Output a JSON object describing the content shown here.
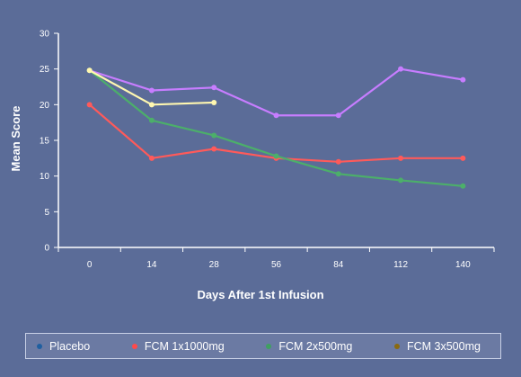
{
  "chart_data": {
    "type": "line",
    "xlabel": "Days After 1st Infusion",
    "ylabel": "Mean Score",
    "categories": [
      "0",
      "14",
      "28",
      "56",
      "84",
      "112",
      "140"
    ],
    "ylim": [
      0,
      30
    ],
    "yticks": [
      0,
      5,
      10,
      15,
      20,
      25,
      30
    ],
    "grid": false,
    "legend_position": "bottom",
    "series": [
      {
        "name": "Placebo",
        "color": "#c77dff",
        "values": [
          24.8,
          22.0,
          22.4,
          18.5,
          18.5,
          25.0,
          23.5
        ]
      },
      {
        "name": "FCM 1x1000mg",
        "color": "#ff5a5a",
        "values": [
          20.0,
          12.5,
          13.8,
          12.5,
          12.0,
          12.5,
          12.5
        ]
      },
      {
        "name": "FCM 2x500mg",
        "color": "#4caf6a",
        "values": [
          24.8,
          17.8,
          15.7,
          12.8,
          10.3,
          9.4,
          8.6
        ]
      },
      {
        "name": "FCM 3x500mg",
        "color": "#fff7b0",
        "values": [
          24.8,
          20.0,
          20.3,
          null,
          null,
          null,
          null
        ]
      }
    ]
  },
  "legend": [
    {
      "label": "Placebo",
      "color": "#1f5fa0"
    },
    {
      "label": "FCM 1x1000mg",
      "color": "#ff4a4a"
    },
    {
      "label": "FCM 2x500mg",
      "color": "#3fa060"
    },
    {
      "label": "FCM 3x500mg",
      "color": "#8a6a10"
    }
  ]
}
